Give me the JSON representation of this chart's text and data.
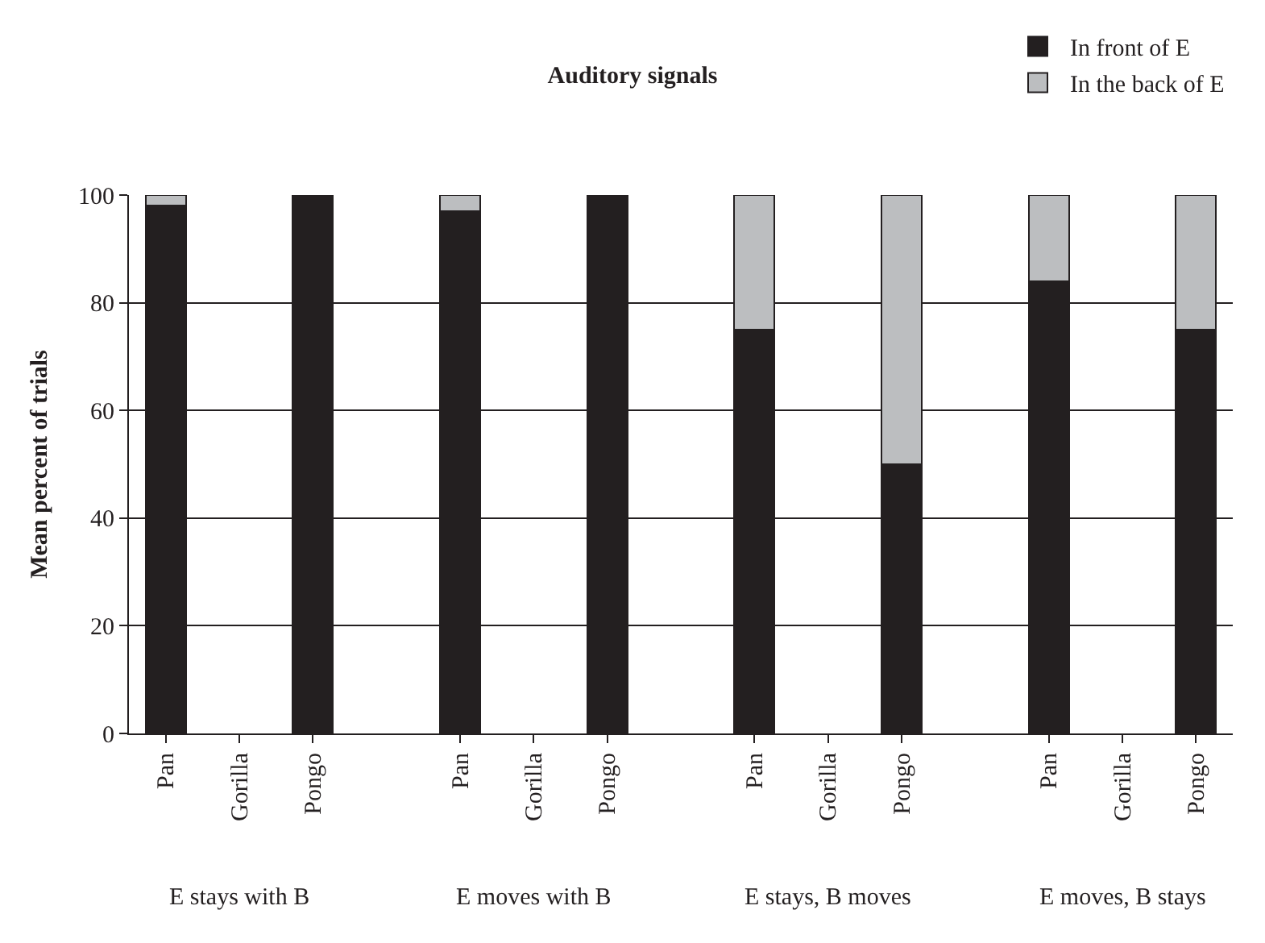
{
  "chart_data": {
    "type": "bar",
    "title": "Auditory signals",
    "ylabel": "Mean percent of trials",
    "categories": [
      "Pan",
      "Gorilla",
      "Pongo",
      null,
      "Pan",
      "Gorilla",
      "Pongo",
      null,
      "Pan",
      "Gorilla",
      "Pongo",
      null,
      "Pan",
      "Gorilla",
      "Pongo"
    ],
    "series": [
      {
        "name": "In front of E",
        "color": "#231f20",
        "values": [
          98,
          null,
          100,
          null,
          97,
          null,
          100,
          null,
          75,
          null,
          50,
          null,
          84,
          null,
          75
        ]
      },
      {
        "name": "In the back of E",
        "color": "#bcbec0",
        "values": [
          2,
          null,
          null,
          null,
          3,
          null,
          null,
          null,
          25,
          null,
          50,
          null,
          16,
          null,
          25
        ]
      }
    ],
    "stacked": true,
    "ylim": [
      0,
      100
    ],
    "yticks": [
      0,
      20,
      40,
      60,
      80,
      100
    ],
    "grid": "y",
    "legend": "top right",
    "annotations": [
      "E stays with B",
      "E moves with B",
      "E stays, B moves",
      "E moves, B stays"
    ]
  }
}
